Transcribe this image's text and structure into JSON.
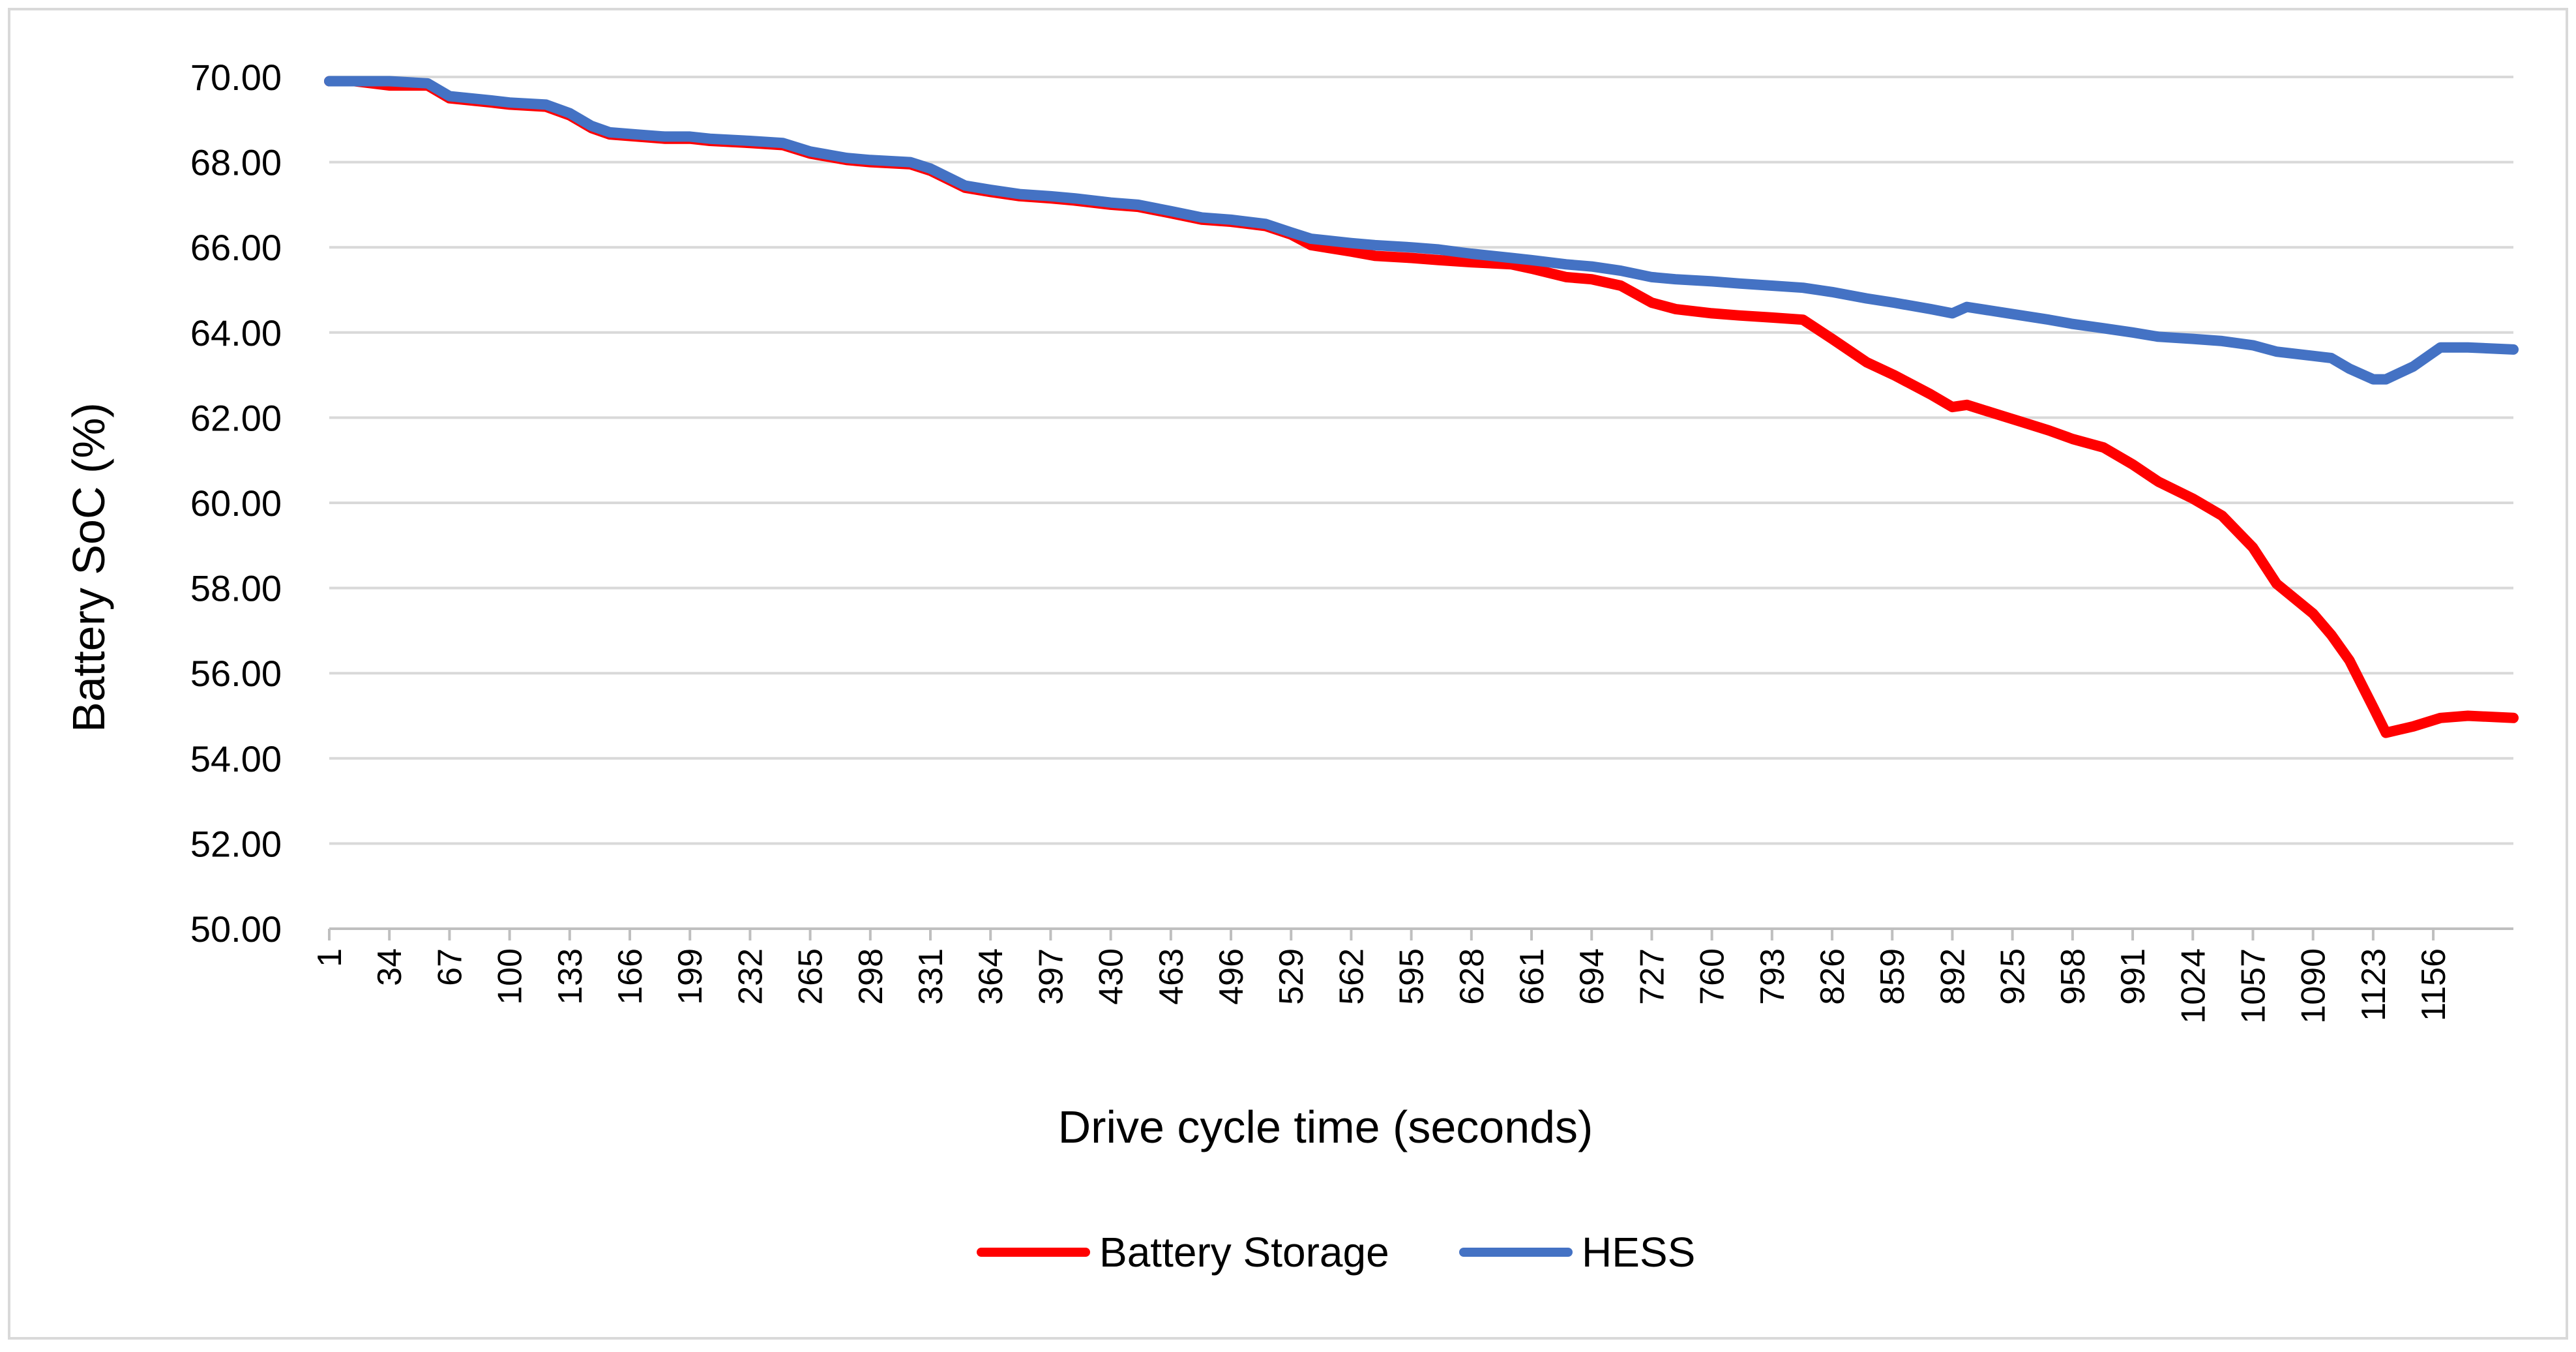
{
  "chart_data": {
    "type": "line",
    "title": "",
    "xlabel": "Drive cycle time (seconds)",
    "ylabel": "Battery SoC (%)",
    "ylim": [
      50,
      70
    ],
    "xlim": [
      1,
      1200
    ],
    "ytick_labels": [
      "50.00",
      "52.00",
      "54.00",
      "56.00",
      "58.00",
      "60.00",
      "62.00",
      "64.00",
      "66.00",
      "68.00",
      "70.00"
    ],
    "xtick_labels": [
      "1",
      "34",
      "67",
      "100",
      "133",
      "166",
      "199",
      "232",
      "265",
      "298",
      "331",
      "364",
      "397",
      "430",
      "463",
      "496",
      "529",
      "562",
      "595",
      "628",
      "661",
      "694",
      "727",
      "760",
      "793",
      "826",
      "859",
      "892",
      "925",
      "958",
      "991",
      "1024",
      "1057",
      "1090",
      "1123",
      "1156"
    ],
    "grid": true,
    "legend_position": "bottom",
    "series": [
      {
        "name": "Battery Storage",
        "color": "#FF0000",
        "x": [
          1,
          15,
          34,
          55,
          67,
          90,
          100,
          120,
          133,
          145,
          155,
          170,
          185,
          199,
          210,
          232,
          250,
          265,
          285,
          298,
          320,
          331,
          350,
          364,
          380,
          397,
          410,
          430,
          445,
          463,
          480,
          496,
          515,
          529,
          540,
          562,
          575,
          595,
          610,
          628,
          650,
          661,
          680,
          694,
          710,
          727,
          740,
          760,
          775,
          793,
          810,
          826,
          845,
          860,
          880,
          892,
          900,
          915,
          930,
          945,
          958,
          975,
          991,
          1005,
          1024,
          1040,
          1057,
          1070,
          1090,
          1100,
          1110,
          1123,
          1130,
          1145,
          1160,
          1175,
          1200
        ],
        "values": [
          69.9,
          69.9,
          69.8,
          69.8,
          69.5,
          69.4,
          69.35,
          69.3,
          69.1,
          68.8,
          68.65,
          68.6,
          68.55,
          68.55,
          68.5,
          68.45,
          68.4,
          68.2,
          68.05,
          68.0,
          67.95,
          67.8,
          67.4,
          67.3,
          67.2,
          67.15,
          67.1,
          67.0,
          66.95,
          66.8,
          66.65,
          66.6,
          66.5,
          66.3,
          66.05,
          65.9,
          65.8,
          65.75,
          65.7,
          65.65,
          65.6,
          65.5,
          65.3,
          65.25,
          65.1,
          64.7,
          64.55,
          64.45,
          64.4,
          64.35,
          64.3,
          63.85,
          63.3,
          63.0,
          62.55,
          62.25,
          62.3,
          62.1,
          61.9,
          61.7,
          61.5,
          61.3,
          60.9,
          60.5,
          60.1,
          59.7,
          58.95,
          58.1,
          57.4,
          56.9,
          56.3,
          55.2,
          54.6,
          54.75,
          54.95,
          55.0,
          54.95
        ]
      },
      {
        "name": "HESS",
        "color": "#4472C4",
        "x": [
          1,
          15,
          34,
          55,
          67,
          90,
          100,
          120,
          133,
          145,
          155,
          170,
          185,
          199,
          210,
          232,
          250,
          265,
          285,
          298,
          320,
          331,
          350,
          364,
          380,
          397,
          410,
          430,
          445,
          463,
          480,
          496,
          515,
          529,
          540,
          562,
          575,
          595,
          610,
          628,
          650,
          661,
          680,
          694,
          710,
          727,
          740,
          760,
          775,
          793,
          810,
          826,
          845,
          860,
          880,
          892,
          900,
          915,
          930,
          945,
          958,
          975,
          991,
          1005,
          1024,
          1040,
          1057,
          1070,
          1090,
          1100,
          1110,
          1123,
          1130,
          1145,
          1160,
          1175,
          1200
        ],
        "values": [
          69.9,
          69.9,
          69.9,
          69.85,
          69.55,
          69.45,
          69.4,
          69.35,
          69.15,
          68.85,
          68.7,
          68.65,
          68.6,
          68.6,
          68.55,
          68.5,
          68.45,
          68.25,
          68.1,
          68.05,
          68.0,
          67.85,
          67.45,
          67.35,
          67.25,
          67.2,
          67.15,
          67.05,
          67.0,
          66.85,
          66.7,
          66.65,
          66.55,
          66.35,
          66.2,
          66.1,
          66.05,
          66.0,
          65.95,
          65.85,
          65.75,
          65.7,
          65.6,
          65.55,
          65.45,
          65.3,
          65.25,
          65.2,
          65.15,
          65.1,
          65.05,
          64.95,
          64.8,
          64.7,
          64.55,
          64.45,
          64.6,
          64.5,
          64.4,
          64.3,
          64.2,
          64.1,
          64.0,
          63.9,
          63.85,
          63.8,
          63.7,
          63.55,
          63.45,
          63.4,
          63.15,
          62.9,
          62.9,
          63.2,
          63.65,
          63.65,
          63.6
        ]
      }
    ]
  }
}
